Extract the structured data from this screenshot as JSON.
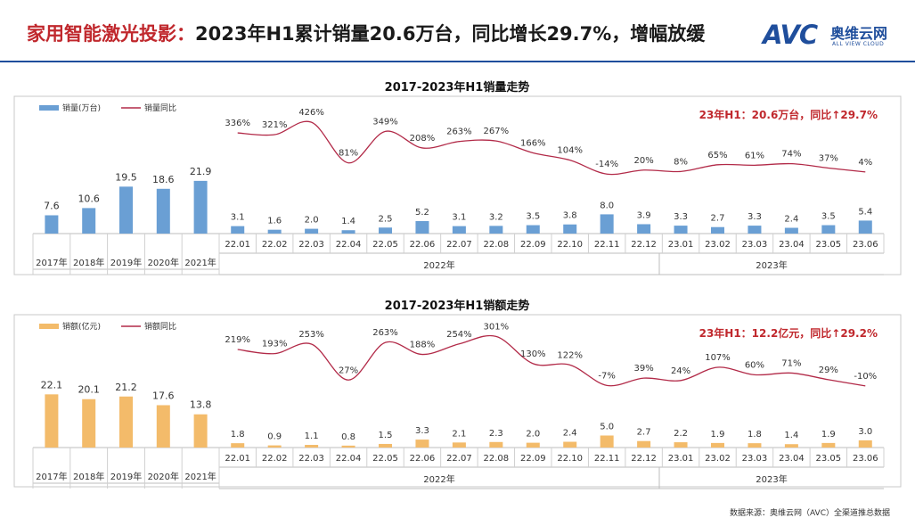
{
  "header": {
    "title_highlight": "家用智能激光投影：",
    "title_rest": "2023年H1累计销量20.6万台，同比增长29.7%，增幅放缓",
    "logo_mark": "AVC",
    "logo_cn": "奥维云网",
    "logo_en": "ALL VIEW CLOUD"
  },
  "footnote": "数据来源：奥维云网（AVC）全渠道推总数据",
  "colors": {
    "brand_blue": "#1f4e9c",
    "bar_blue": "#6a9fd4",
    "bar_orange": "#f3bb6a",
    "line_red": "#b22a48",
    "accent_red": "#c0282d"
  },
  "chart_data": [
    {
      "type": "bar+line",
      "title": "2017-2023年H1销量走势",
      "legend_bar": "销量(万台)",
      "legend_line": "销量同比",
      "annotation_prefix": "23年H1：20.6万台，同比",
      "annotation_arrow": "↑",
      "annotation_value": "29.7%",
      "bar_color": "#6a9fd4",
      "annual": {
        "categories": [
          "2017年",
          "2018年",
          "2019年",
          "2020年",
          "2021年"
        ],
        "values": [
          7.6,
          10.6,
          19.5,
          18.6,
          21.9
        ],
        "labels": [
          "7.6",
          "10.6",
          "19.5",
          "18.6",
          "21.9"
        ],
        "ylim": [
          0,
          30
        ]
      },
      "monthly": {
        "categories": [
          "22.01",
          "22.02",
          "22.03",
          "22.04",
          "22.05",
          "22.06",
          "22.07",
          "22.08",
          "22.09",
          "22.10",
          "22.11",
          "22.12",
          "23.01",
          "23.02",
          "23.03",
          "23.04",
          "23.05",
          "23.06"
        ],
        "values": [
          3.1,
          1.6,
          2.0,
          1.4,
          2.5,
          5.2,
          3.1,
          3.2,
          3.5,
          3.8,
          8.0,
          3.9,
          3.3,
          2.7,
          3.3,
          2.4,
          3.5,
          5.4
        ],
        "labels": [
          "3.1",
          "1.6",
          "2.0",
          "1.4",
          "2.5",
          "5.2",
          "3.1",
          "3.2",
          "3.5",
          "3.8",
          "8.0",
          "3.9",
          "3.3",
          "2.7",
          "3.3",
          "2.4",
          "3.5",
          "5.4"
        ],
        "yoy": [
          336,
          321,
          426,
          81,
          349,
          208,
          263,
          267,
          166,
          104,
          -14,
          20,
          8,
          65,
          61,
          74,
          37,
          4
        ],
        "yoy_labels": [
          "336%",
          "321%",
          "426%",
          "81%",
          "349%",
          "208%",
          "263%",
          "267%",
          "166%",
          "104%",
          "-14%",
          "20%",
          "8%",
          "65%",
          "61%",
          "74%",
          "37%",
          "4%"
        ],
        "ylim": [
          0,
          30
        ],
        "yoy_range": [
          -50,
          450
        ]
      },
      "groups": [
        "2022年",
        "2023年"
      ]
    },
    {
      "type": "bar+line",
      "title": "2017-2023年H1销额走势",
      "legend_bar": "销额(亿元)",
      "legend_line": "销额同比",
      "annotation_prefix": "23年H1：12.2亿元，同比",
      "annotation_arrow": "↑",
      "annotation_value": "29.2%",
      "bar_color": "#f3bb6a",
      "annual": {
        "categories": [
          "2017年",
          "2018年",
          "2019年",
          "2020年",
          "2021年"
        ],
        "values": [
          22.1,
          20.1,
          21.2,
          17.6,
          13.8
        ],
        "labels": [
          "22.1",
          "20.1",
          "21.2",
          "17.6",
          "13.8"
        ],
        "ylim": [
          0,
          30
        ]
      },
      "monthly": {
        "categories": [
          "22.01",
          "22.02",
          "22.03",
          "22.04",
          "22.05",
          "22.06",
          "22.07",
          "22.08",
          "22.09",
          "22.10",
          "22.11",
          "22.12",
          "23.01",
          "23.02",
          "23.03",
          "23.04",
          "23.05",
          "23.06"
        ],
        "values": [
          1.8,
          0.9,
          1.1,
          0.8,
          1.5,
          3.3,
          2.1,
          2.3,
          2.0,
          2.4,
          5.0,
          2.7,
          2.2,
          1.9,
          1.8,
          1.4,
          1.9,
          3.0
        ],
        "labels": [
          "1.8",
          "0.9",
          "1.1",
          "0.8",
          "1.5",
          "3.3",
          "2.1",
          "2.3",
          "2.0",
          "2.4",
          "5.0",
          "2.7",
          "2.2",
          "1.9",
          "1.8",
          "1.4",
          "1.9",
          "3.0"
        ],
        "yoy": [
          219,
          193,
          253,
          27,
          263,
          188,
          254,
          301,
          130,
          122,
          -7,
          39,
          24,
          107,
          60,
          71,
          29,
          -10
        ],
        "yoy_labels": [
          "219%",
          "193%",
          "253%",
          "27%",
          "263%",
          "188%",
          "254%",
          "301%",
          "130%",
          "122%",
          "-7%",
          "39%",
          "24%",
          "107%",
          "60%",
          "71%",
          "29%",
          "-10%"
        ],
        "ylim": [
          0,
          30
        ],
        "yoy_range": [
          -50,
          320
        ]
      },
      "groups": [
        "2022年",
        "2023年"
      ]
    }
  ]
}
